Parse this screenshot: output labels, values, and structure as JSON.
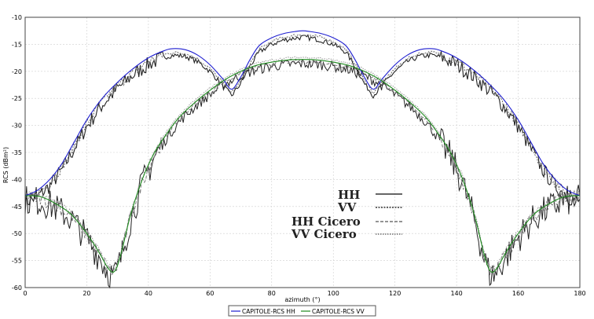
{
  "chart_data": {
    "type": "line",
    "xlabel": "azimuth (°)",
    "ylabel": "RCS (dBm²)",
    "xlim": [
      0,
      180
    ],
    "ylim": [
      -60,
      -10
    ],
    "xticks": [
      0,
      20,
      40,
      60,
      80,
      100,
      120,
      140,
      160,
      180
    ],
    "yticks": [
      -10,
      -15,
      -20,
      -25,
      -30,
      -35,
      -40,
      -45,
      -50,
      -55,
      -60
    ],
    "grid": true,
    "inset_legend": [
      "HH",
      "VV",
      "HH Cicero",
      "VV Cicero"
    ],
    "series": [
      {
        "name": "CAPITOLE-RCS HH",
        "color": "#1f1fd0",
        "x": [
          0,
          4,
          8,
          12,
          16,
          20,
          25,
          30,
          35,
          40,
          45,
          48,
          52,
          56,
          60,
          64,
          67,
          70,
          73,
          76,
          80,
          84,
          88,
          90,
          92,
          96,
          100,
          104,
          107,
          110,
          113,
          116,
          120,
          124,
          128,
          132,
          135,
          140,
          145,
          150,
          155,
          160,
          164,
          168,
          172,
          176,
          180
        ],
        "y": [
          -43,
          -42,
          -40,
          -37,
          -33,
          -29,
          -25,
          -22,
          -19.5,
          -17.5,
          -16.2,
          -15.8,
          -16,
          -17,
          -18.8,
          -21.3,
          -23.3,
          -21,
          -17.8,
          -15.2,
          -13.8,
          -13,
          -12.6,
          -12.5,
          -12.6,
          -13,
          -13.8,
          -15.2,
          -17.8,
          -21,
          -23.3,
          -21.3,
          -18.8,
          -17,
          -16,
          -15.8,
          -16.2,
          -17.5,
          -19.5,
          -22,
          -25,
          -29,
          -33,
          -37,
          -40,
          -42,
          -43
        ]
      },
      {
        "name": "CAPITOLE-RCS VV",
        "color": "#1e8a1e",
        "x": [
          0,
          5,
          10,
          15,
          20,
          24,
          27,
          29,
          31,
          34,
          38,
          42,
          46,
          50,
          55,
          60,
          65,
          70,
          75,
          80,
          85,
          90,
          95,
          100,
          105,
          110,
          115,
          120,
          125,
          130,
          134,
          138,
          142,
          146,
          149,
          151,
          153,
          156,
          160,
          165,
          170,
          175,
          180
        ],
        "y": [
          -43,
          -43.2,
          -44.5,
          -46.5,
          -50,
          -53.5,
          -56.5,
          -57,
          -54,
          -47,
          -40,
          -35,
          -31.5,
          -28.5,
          -25.8,
          -23.5,
          -21.5,
          -20,
          -18.9,
          -18.3,
          -17.9,
          -17.8,
          -17.9,
          -18.3,
          -18.9,
          -20,
          -21.5,
          -23.5,
          -25.8,
          -28.5,
          -31.5,
          -35,
          -40,
          -47,
          -54,
          -57,
          -56.5,
          -53.5,
          -50,
          -46.5,
          -44.5,
          -43.2,
          -43
        ]
      }
    ],
    "bottom_legend": [
      "CAPITOLE-RCS HH",
      "CAPITOLE-RCS VV"
    ]
  }
}
